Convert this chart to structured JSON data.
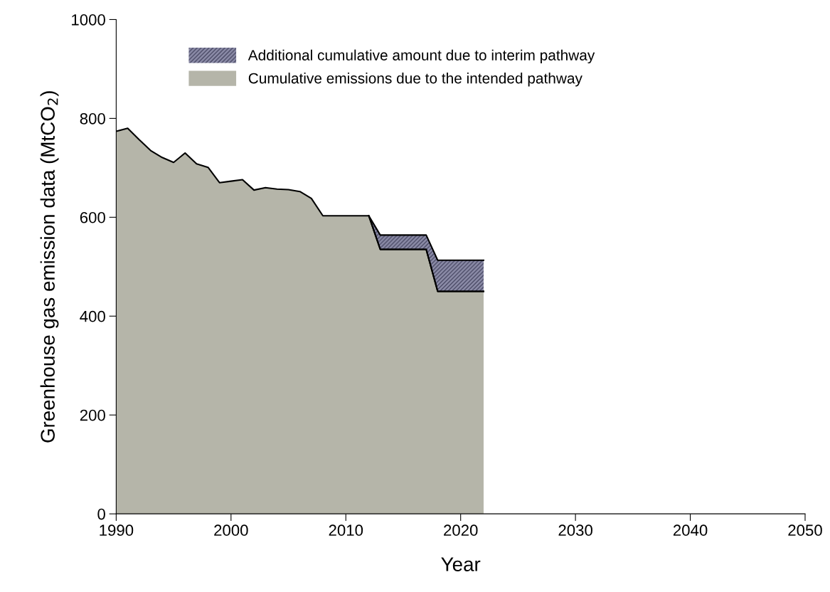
{
  "chart_data": {
    "type": "area",
    "stacked": true,
    "xlabel": "Year",
    "ylabel": "Greenhouse gas emission data (MtCO$_{2}$)",
    "x": [
      1990,
      1991,
      1992,
      1993,
      1994,
      1995,
      1996,
      1997,
      1998,
      1999,
      2000,
      2001,
      2002,
      2003,
      2004,
      2005,
      2006,
      2007,
      2008,
      2009,
      2010,
      2011,
      2012,
      2013,
      2014,
      2015,
      2016,
      2017,
      2018,
      2019,
      2020,
      2021,
      2022
    ],
    "series": [
      {
        "name": "Cumulative emissions due to the intended pathway",
        "color": "#b5b5a9",
        "values": [
          774,
          780,
          757,
          735,
          721,
          711,
          730,
          708,
          701,
          670,
          673,
          676,
          655,
          660,
          657,
          656,
          652,
          638,
          603,
          603,
          603,
          603,
          603,
          535,
          535,
          535,
          535,
          535,
          450,
          450,
          450,
          450,
          450
        ]
      },
      {
        "name": "Additional cumulative amount due to interim pathway",
        "color": "#8c8ca8",
        "values": [
          null,
          null,
          null,
          null,
          null,
          null,
          null,
          null,
          null,
          null,
          null,
          null,
          null,
          null,
          null,
          null,
          null,
          null,
          null,
          null,
          null,
          null,
          0,
          29,
          29,
          29,
          29,
          29,
          63,
          63,
          63,
          63,
          63
        ]
      }
    ],
    "xlim": [
      1990,
      2050
    ],
    "xticks": [
      1990,
      2000,
      2010,
      2020,
      2030,
      2040,
      2050
    ],
    "ylim": [
      0,
      1000
    ],
    "yticks": [
      0,
      200,
      400,
      600,
      800,
      1000
    ],
    "legend": "top",
    "grid": false
  }
}
